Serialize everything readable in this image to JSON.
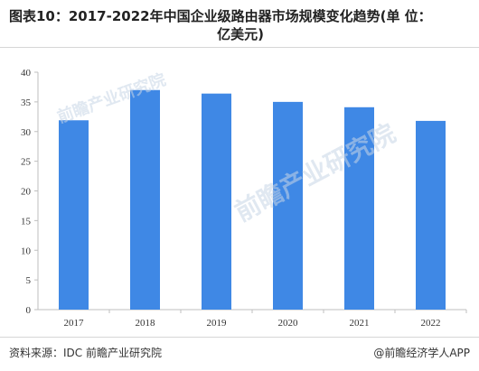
{
  "title": {
    "line1": "图表10：2017-2022年中国企业级路由器市场规模变化趋势(单 位：",
    "line2": "亿美元)"
  },
  "footer": {
    "source": "资料来源：IDC 前瞻产业研究院",
    "brand": "@前瞻经济学人APP"
  },
  "watermark": {
    "text": "前瞻产业研究院"
  },
  "colors": {
    "bar": "#3f88e5",
    "axis": "#bfbfbf",
    "tick_text": "#333333"
  },
  "chart_data": {
    "type": "bar",
    "categories": [
      "2017",
      "2018",
      "2019",
      "2020",
      "2021",
      "2022"
    ],
    "values": [
      31.9,
      37.0,
      36.4,
      35.0,
      34.1,
      31.8
    ],
    "ylim": [
      0,
      40
    ],
    "yticks": [
      0,
      5,
      10,
      15,
      20,
      25,
      30,
      35,
      40
    ],
    "grid": false,
    "legend": "none"
  }
}
